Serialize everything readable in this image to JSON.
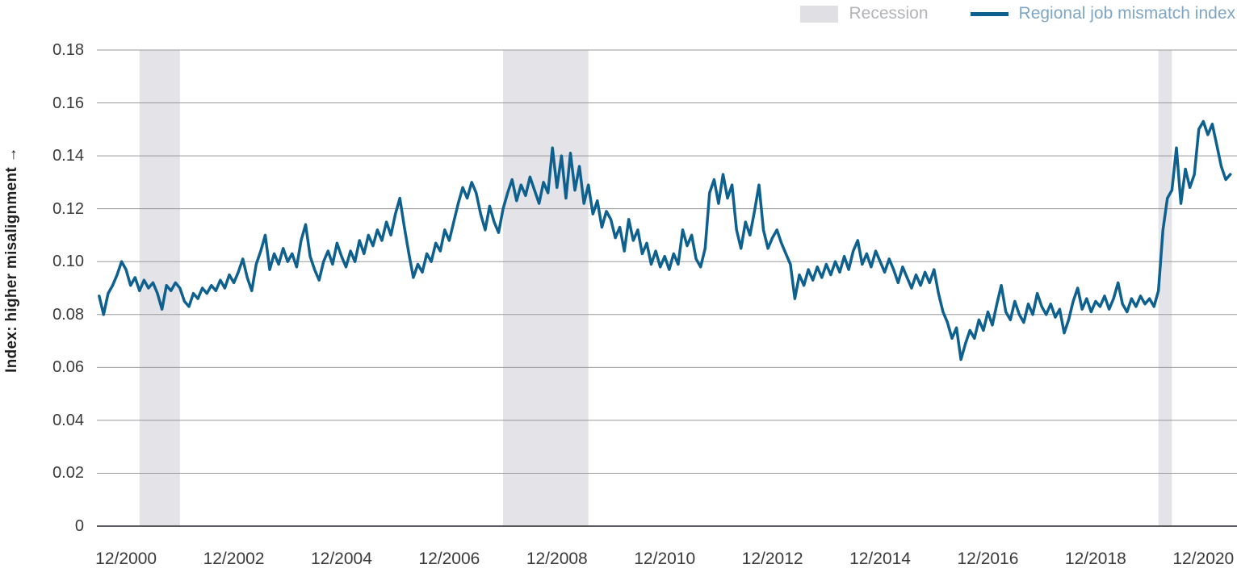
{
  "colors": {
    "series_line": "#0e618f",
    "recession_band": "#e3e3e8",
    "grid_line": "#98999b",
    "axis_line": "#5a5b5e",
    "tick_text": "#3a3a3a",
    "y_title_text": "#1f1f1f",
    "legend_recession_text": "#b2b4b7",
    "legend_series_text": "#7fa6c5",
    "legend_recession_swatch": "#dfdfe4"
  },
  "chart_data": {
    "type": "line",
    "title": "",
    "grid": "horizontal",
    "legend": [
      {
        "label": "Recession",
        "swatch": "area",
        "color": "#dfdfe4"
      },
      {
        "label": "Regional job mismatch index",
        "swatch": "line",
        "color": "#0e618f"
      }
    ],
    "y_axis": {
      "title": "Index: higher misalignment →",
      "ylim": [
        0,
        0.18
      ],
      "tick_step": 0.02,
      "tick_labels": [
        "0.18",
        "0.16",
        "0.14",
        "0.12",
        "0.10",
        "0.08",
        "0.06",
        "0.04",
        "0.02",
        "0"
      ]
    },
    "x_axis": {
      "tick_labels": [
        "12/2000",
        "12/2002",
        "12/2004",
        "12/2006",
        "12/2008",
        "12/2010",
        "12/2012",
        "12/2014",
        "12/2016",
        "12/2018",
        "12/2020"
      ],
      "domain_months": [
        4.5,
        258.5
      ]
    },
    "recessions": [
      {
        "start": "2001-03",
        "end": "2001-11"
      },
      {
        "start": "2007-12",
        "end": "2009-06"
      },
      {
        "start": "2020-02",
        "end": "2020-04"
      }
    ],
    "series": [
      {
        "name": "Regional job mismatch index",
        "start_month": "2000-06",
        "frequency": "monthly",
        "values": [
          0.087,
          0.08,
          0.088,
          0.091,
          0.095,
          0.1,
          0.097,
          0.091,
          0.094,
          0.089,
          0.093,
          0.09,
          0.092,
          0.088,
          0.082,
          0.091,
          0.089,
          0.092,
          0.09,
          0.085,
          0.083,
          0.088,
          0.086,
          0.09,
          0.088,
          0.091,
          0.089,
          0.093,
          0.09,
          0.095,
          0.092,
          0.096,
          0.101,
          0.094,
          0.089,
          0.099,
          0.104,
          0.11,
          0.097,
          0.103,
          0.099,
          0.105,
          0.1,
          0.103,
          0.098,
          0.108,
          0.114,
          0.102,
          0.097,
          0.093,
          0.1,
          0.104,
          0.099,
          0.107,
          0.102,
          0.098,
          0.104,
          0.1,
          0.108,
          0.103,
          0.11,
          0.106,
          0.112,
          0.108,
          0.115,
          0.11,
          0.118,
          0.124,
          0.113,
          0.103,
          0.094,
          0.099,
          0.096,
          0.103,
          0.1,
          0.107,
          0.104,
          0.112,
          0.108,
          0.115,
          0.122,
          0.128,
          0.124,
          0.13,
          0.126,
          0.118,
          0.112,
          0.121,
          0.115,
          0.111,
          0.12,
          0.126,
          0.131,
          0.123,
          0.129,
          0.125,
          0.132,
          0.127,
          0.122,
          0.13,
          0.126,
          0.143,
          0.128,
          0.14,
          0.124,
          0.141,
          0.127,
          0.136,
          0.122,
          0.129,
          0.118,
          0.123,
          0.113,
          0.119,
          0.116,
          0.109,
          0.113,
          0.104,
          0.116,
          0.108,
          0.112,
          0.103,
          0.107,
          0.099,
          0.104,
          0.098,
          0.102,
          0.097,
          0.103,
          0.099,
          0.112,
          0.106,
          0.11,
          0.101,
          0.098,
          0.105,
          0.126,
          0.131,
          0.122,
          0.133,
          0.124,
          0.129,
          0.112,
          0.105,
          0.115,
          0.11,
          0.119,
          0.129,
          0.112,
          0.105,
          0.109,
          0.112,
          0.107,
          0.103,
          0.099,
          0.086,
          0.095,
          0.091,
          0.097,
          0.093,
          0.098,
          0.094,
          0.099,
          0.095,
          0.1,
          0.096,
          0.102,
          0.097,
          0.104,
          0.108,
          0.099,
          0.103,
          0.098,
          0.104,
          0.1,
          0.096,
          0.101,
          0.097,
          0.092,
          0.098,
          0.094,
          0.09,
          0.095,
          0.091,
          0.096,
          0.092,
          0.097,
          0.088,
          0.081,
          0.077,
          0.071,
          0.075,
          0.063,
          0.069,
          0.074,
          0.071,
          0.078,
          0.074,
          0.081,
          0.076,
          0.084,
          0.091,
          0.081,
          0.078,
          0.085,
          0.08,
          0.077,
          0.084,
          0.08,
          0.088,
          0.083,
          0.08,
          0.084,
          0.079,
          0.082,
          0.073,
          0.078,
          0.085,
          0.09,
          0.082,
          0.086,
          0.081,
          0.085,
          0.083,
          0.087,
          0.082,
          0.086,
          0.092,
          0.084,
          0.081,
          0.086,
          0.083,
          0.087,
          0.084,
          0.086,
          0.083,
          0.089,
          0.112,
          0.124,
          0.127,
          0.143,
          0.122,
          0.135,
          0.128,
          0.133,
          0.15,
          0.153,
          0.148,
          0.152,
          0.144,
          0.136,
          0.131,
          0.133
        ]
      }
    ]
  }
}
